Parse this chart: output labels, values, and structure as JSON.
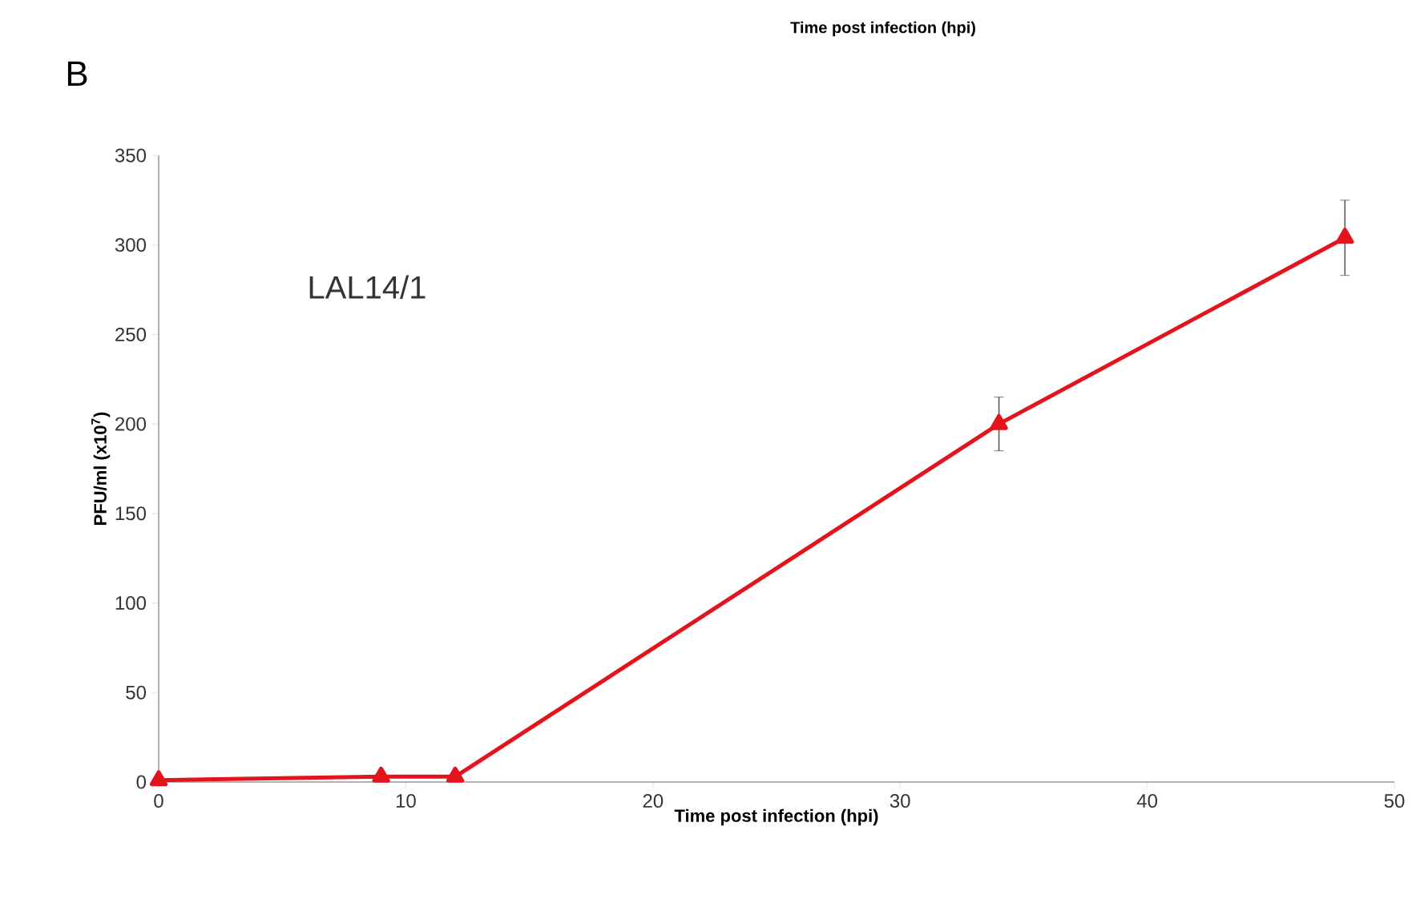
{
  "chart_data": {
    "type": "line",
    "xlabel": "Time post infection (hpi)",
    "ylabel": "PFU/ml (x10$^{7}$)",
    "annotations": [
      "Time post infection (hpi)",
      "B"
    ],
    "x": [
      0,
      9,
      12,
      34,
      48
    ],
    "series": [
      {
        "name": "LAL14/1",
        "color": "#e3141c",
        "values": [
          1,
          3,
          3,
          200,
          304
        ],
        "errors": [
          null,
          null,
          null,
          15,
          21
        ]
      }
    ],
    "xlim": [
      0,
      50
    ],
    "xticks": [
      0,
      10,
      20,
      30,
      40,
      50
    ],
    "ylim": [
      0,
      350
    ],
    "yticks": [
      0,
      50,
      100,
      150,
      200,
      250,
      300,
      350
    ],
    "grid": false,
    "legend": false,
    "marker": "triangle",
    "line_style": "solid"
  }
}
